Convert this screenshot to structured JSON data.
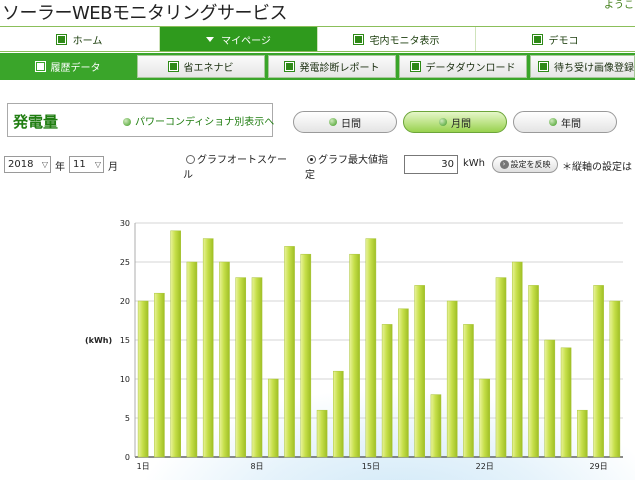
{
  "header": {
    "app_title": "ソーラーWEBモニタリングサービス",
    "welcome": "ようこ"
  },
  "main_nav": [
    {
      "label": "ホーム",
      "active": false
    },
    {
      "label": "マイページ",
      "active": true
    },
    {
      "label": "宅内モニタ表示",
      "active": false
    },
    {
      "label": "デモコ",
      "active": false
    }
  ],
  "sub_nav": [
    {
      "label": "履歴データ",
      "active": true
    },
    {
      "label": "省エネナビ",
      "active": false
    },
    {
      "label": "発電診断レポート",
      "active": false
    },
    {
      "label": "データダウンロード",
      "active": false
    },
    {
      "label": "待ち受け画像登録",
      "active": false
    }
  ],
  "panel": {
    "title": "発電量",
    "pcs_link": "パワーコンディショナ別表示へ"
  },
  "period_tabs": [
    {
      "label": "日間",
      "active": false
    },
    {
      "label": "月間",
      "active": true
    },
    {
      "label": "年間",
      "active": false
    }
  ],
  "controls": {
    "year": "2018",
    "year_unit": "年",
    "month": "11",
    "month_unit": "月",
    "radio_auto_line1": "グラフオートスケー",
    "radio_auto_line2": "ル",
    "radio_max_line1": "グラフ最大値指",
    "radio_max_line2": "定",
    "max_value": "30",
    "max_unit": "kWh",
    "apply_label": "設定を反映",
    "note": "＊縦軸の設定は"
  },
  "chart_data": {
    "type": "bar",
    "ylabel": "(kWh)",
    "ylim": [
      0,
      30
    ],
    "yticks": [
      0,
      5,
      10,
      15,
      20,
      25,
      30
    ],
    "x": [
      1,
      2,
      3,
      4,
      5,
      6,
      7,
      8,
      9,
      10,
      11,
      12,
      13,
      14,
      15,
      16,
      17,
      18,
      19,
      20,
      21,
      22,
      23,
      24,
      25,
      26,
      27,
      28,
      29,
      30
    ],
    "values": [
      20,
      21,
      29,
      25,
      28,
      25,
      23,
      23,
      10,
      27,
      26,
      6,
      11,
      26,
      28,
      17,
      19,
      22,
      8,
      20,
      17,
      10,
      23,
      25,
      22,
      15,
      14,
      6,
      22,
      20
    ],
    "xtick_labels": [
      {
        "day": 1,
        "label": "1日"
      },
      {
        "day": 8,
        "label": "8日"
      },
      {
        "day": 15,
        "label": "15日"
      },
      {
        "day": 22,
        "label": "22日"
      },
      {
        "day": 29,
        "label": "29日"
      }
    ],
    "bar_color": "#c6df4a",
    "grid": true
  }
}
